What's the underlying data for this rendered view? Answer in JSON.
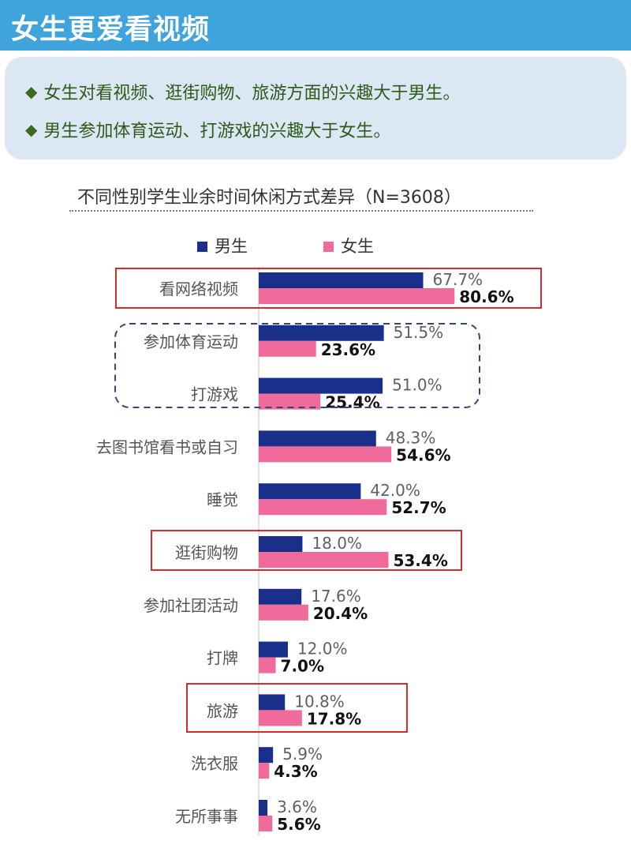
{
  "header": {
    "title": "女生更爱看视频"
  },
  "summary": {
    "points": [
      "女生对看视频、逛街购物、旅游方面的兴趣大于男生。",
      "男生参加体育运动、打游戏的兴趣大于女生。"
    ]
  },
  "chart_data": {
    "type": "bar",
    "orientation": "horizontal",
    "title": "不同性别学生业余时间休闲方式差异（N=3608）",
    "categories": [
      "看网络视频",
      "参加体育运动",
      "打游戏",
      "去图书馆看书或自习",
      "睡觉",
      "逛街购物",
      "参加社团活动",
      "打牌",
      "旅游",
      "洗衣服",
      "无所事事"
    ],
    "series": [
      {
        "name": "男生",
        "color": "#1a2f8a",
        "values": [
          67.7,
          51.5,
          51.0,
          48.3,
          42.0,
          18.0,
          17.6,
          12.0,
          10.8,
          5.9,
          3.6
        ],
        "labels": [
          "67.7%",
          "51.5%",
          "51.0%",
          "48.3%",
          "42.0%",
          "18.0%",
          "17.6%",
          "12.0%",
          "10.8%",
          "5.9%",
          "3.6%"
        ]
      },
      {
        "name": "女生",
        "color": "#f06a9b",
        "values": [
          80.6,
          23.6,
          25.4,
          54.6,
          52.7,
          53.4,
          20.4,
          7.0,
          17.8,
          4.3,
          5.6
        ],
        "labels": [
          "80.6%",
          "23.6%",
          "25.4%",
          "54.6%",
          "52.7%",
          "53.4%",
          "20.4%",
          "7.0%",
          "17.8%",
          "4.3%",
          "5.6%"
        ]
      }
    ],
    "xlim": [
      0,
      100
    ],
    "legend": "top",
    "highlight_red": [
      "看网络视频",
      "逛街购物",
      "旅游"
    ],
    "highlight_dashed": [
      "参加体育运动",
      "打游戏"
    ]
  }
}
